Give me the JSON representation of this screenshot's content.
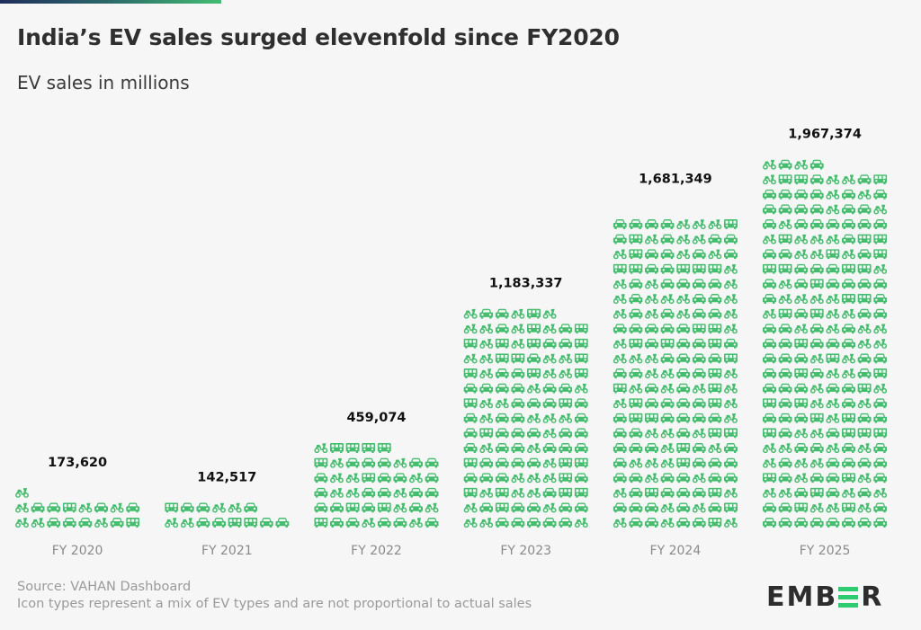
{
  "header": {
    "title": "India’s EV sales surged elevenfold since FY2020",
    "subtitle": "EV sales in millions"
  },
  "colors": {
    "icon": "#45bd6e",
    "accent_gradient_start": "#1f2d5c",
    "accent_gradient_end": "#41bd72",
    "logo_green": "#2ecc71"
  },
  "chart_data": {
    "type": "bar",
    "subtype": "pictogram",
    "title": "India’s EV sales surged elevenfold since FY2020",
    "subtitle": "EV sales in millions",
    "xlabel": "",
    "ylabel": "",
    "units_per_icon": 10000,
    "icons_per_row": 8,
    "icon_types": [
      "car-icon",
      "scooter-icon",
      "van-icon"
    ],
    "categories": [
      "FY 2020",
      "FY 2021",
      "FY 2022",
      "FY 2023",
      "FY 2024",
      "FY 2025"
    ],
    "values": [
      173620,
      142517,
      459074,
      1183337,
      1681349,
      1967374
    ],
    "value_labels": [
      "173,620",
      "142,517",
      "459,074",
      "1,183,337",
      "1,681,349",
      "1,967,374"
    ],
    "grid": false,
    "legend": "none"
  },
  "footer": {
    "source": "Source: VAHAN Dashboard",
    "note": "Icon types represent a mix of EV types and are not proportional to actual sales"
  },
  "logo": {
    "left": "EMB",
    "right": "R",
    "name": "EMBER"
  }
}
